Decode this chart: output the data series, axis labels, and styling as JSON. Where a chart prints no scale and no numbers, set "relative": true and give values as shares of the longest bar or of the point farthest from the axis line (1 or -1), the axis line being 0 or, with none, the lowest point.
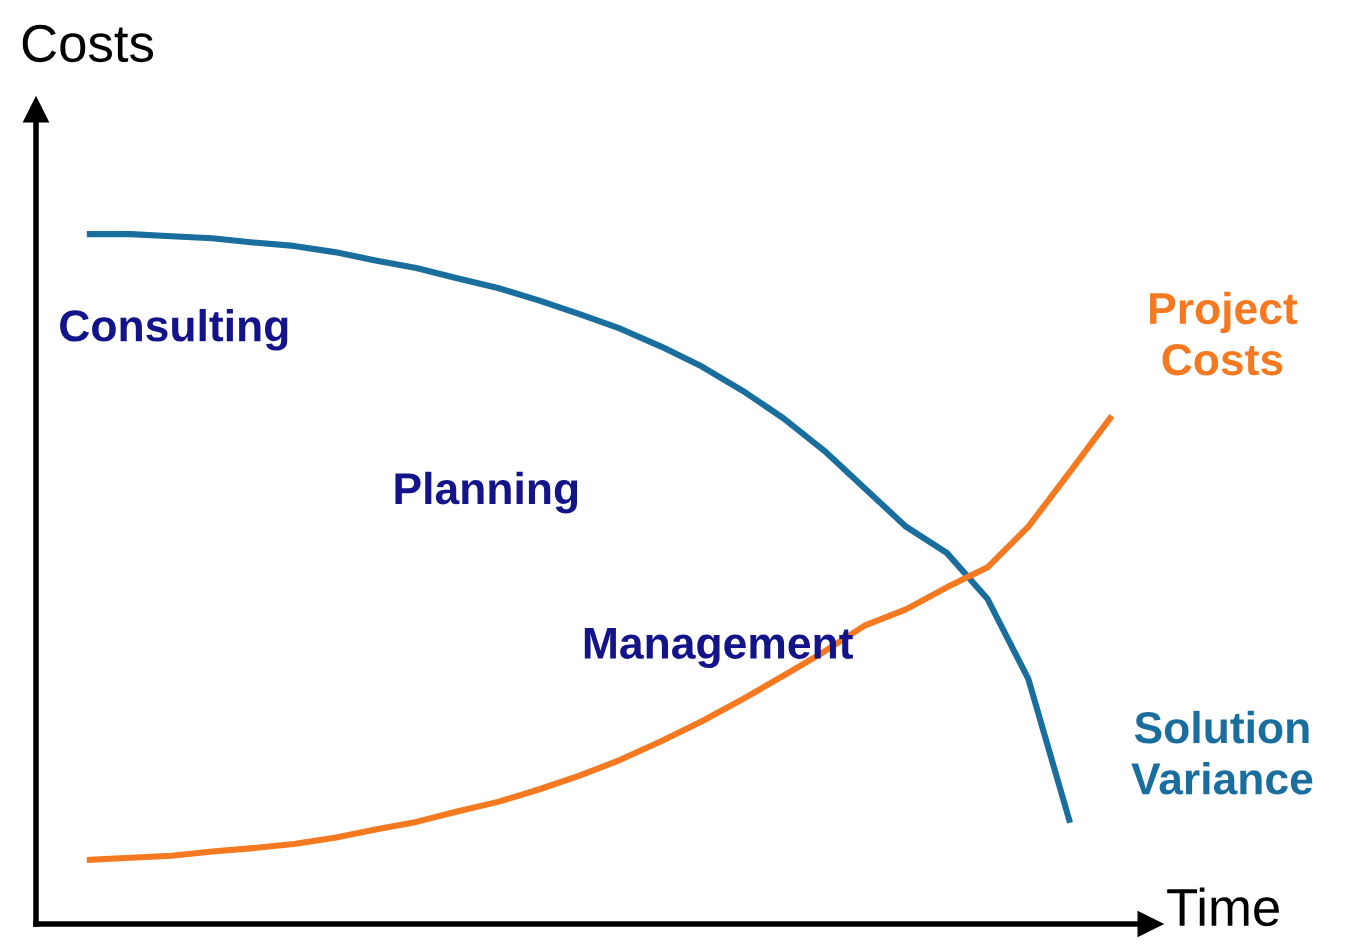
{
  "chart_data": {
    "type": "line",
    "relative": true,
    "xlabel": "Time",
    "ylabel": "Costs",
    "categories": [
      null,
      null,
      null,
      null,
      null,
      null,
      null,
      null,
      null,
      null,
      null,
      null,
      null,
      null,
      null,
      null,
      null,
      null,
      null,
      null,
      null,
      null,
      null,
      null,
      null,
      null
    ],
    "series": [
      {
        "name": "Solution Variance",
        "color": "#1a6e9e",
        "values": [
          1.0,
          1.0,
          0.997,
          0.994,
          0.988,
          0.983,
          0.974,
          0.962,
          0.951,
          0.936,
          0.922,
          0.904,
          0.884,
          0.863,
          0.837,
          0.808,
          0.773,
          0.733,
          0.686,
          0.631,
          0.576,
          0.538,
          0.471,
          0.355,
          0.151,
          null
        ]
      },
      {
        "name": "Project Costs",
        "color": "#f47920",
        "values": [
          0.093,
          0.096,
          0.099,
          0.105,
          0.11,
          0.116,
          0.125,
          0.137,
          0.148,
          0.163,
          0.177,
          0.195,
          0.215,
          0.238,
          0.265,
          0.294,
          0.326,
          0.36,
          0.395,
          0.433,
          0.456,
          0.488,
          0.517,
          0.576,
          0.654,
          0.733
        ]
      }
    ],
    "annotations": [
      "Consulting",
      "Planning",
      "Management"
    ],
    "legend": false,
    "grid": false,
    "marker": "none",
    "line_style": "solid",
    "tick_labels": false
  }
}
